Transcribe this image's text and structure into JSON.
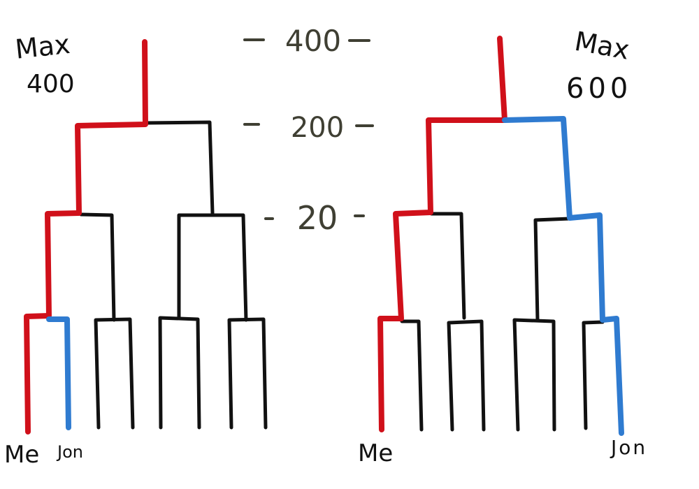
{
  "scale": {
    "levels": [
      "400",
      "200",
      "20"
    ],
    "color": "#3f3f33"
  },
  "colors": {
    "me_path": "#d0101a",
    "jon_path": "#2f7bd0",
    "tree": "#111111"
  },
  "trees": [
    {
      "max_label": "Max",
      "max_value": "400",
      "me_label": "Me",
      "jon_label": "Jon",
      "me_highlight": true,
      "jon_highlight": true
    },
    {
      "max_label": "Max",
      "max_value": "600",
      "me_label": "Me",
      "jon_label": "Jon",
      "me_highlight": true,
      "jon_highlight": true
    }
  ]
}
